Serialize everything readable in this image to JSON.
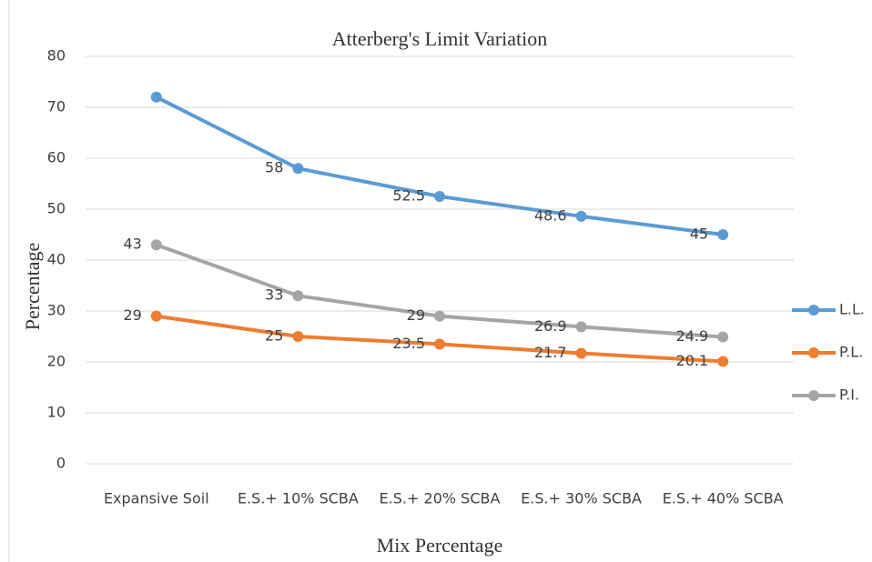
{
  "chart_data": {
    "type": "line",
    "title": "Atterberg's Limit Variation",
    "x_label": "Mix Percentage",
    "y_label": "Percentage",
    "categories": [
      "Expansive Soil",
      "E.S.+ 10% SCBA",
      "E.S.+ 20% SCBA",
      "E.S.+ 30% SCBA",
      "E.S.+ 40% SCBA"
    ],
    "series": [
      {
        "name": "L.L.",
        "color": "#5b9bd5",
        "values": [
          72,
          58,
          52.5,
          48.6,
          45
        ],
        "value_labels": [
          null,
          "58",
          "52.5",
          "48.6",
          "45"
        ]
      },
      {
        "name": "P.L.",
        "color": "#ed7d31",
        "values": [
          29,
          25,
          23.5,
          21.7,
          20.1
        ],
        "value_labels": [
          "29",
          "25",
          "23.5",
          "21.7",
          "20.1"
        ]
      },
      {
        "name": "P.I.",
        "color": "#a5a5a5",
        "values": [
          43,
          33,
          29,
          26.9,
          24.9
        ],
        "value_labels": [
          "43",
          "33",
          "29",
          "26.9",
          "24.9"
        ]
      }
    ],
    "ylim": [
      0,
      80
    ],
    "yticks": [
      0,
      10,
      20,
      30,
      40,
      50,
      60,
      70,
      80
    ],
    "grid": true,
    "legend": "right"
  }
}
